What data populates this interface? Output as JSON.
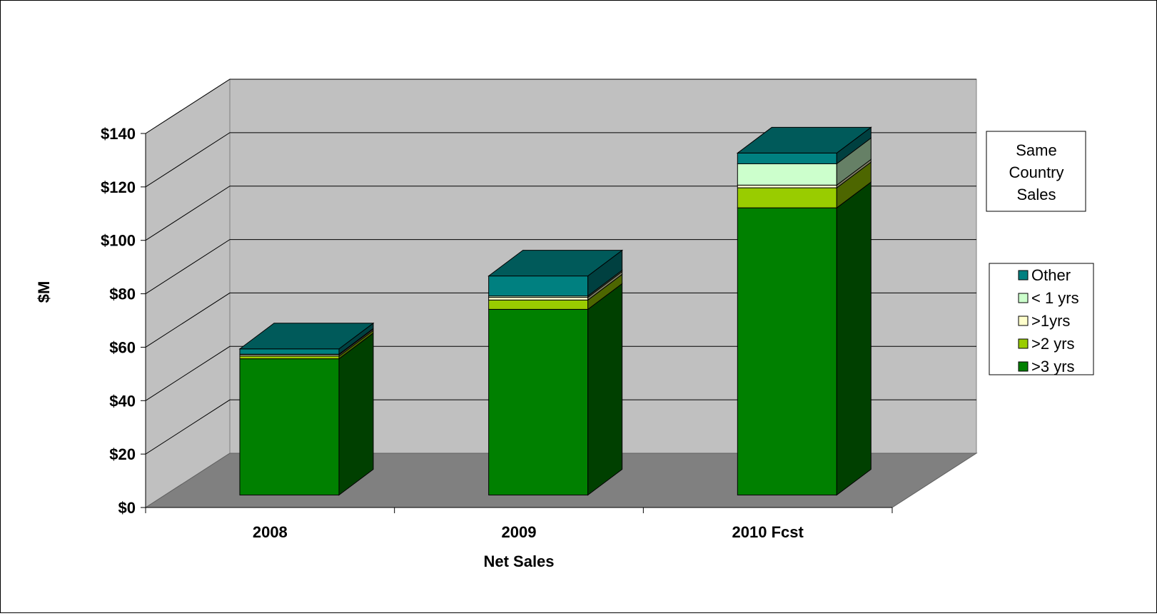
{
  "chart_data": {
    "type": "bar",
    "stacked": true,
    "three_d": true,
    "categories": [
      "2008",
      "2009",
      "2010 Fcst"
    ],
    "series": [
      {
        "name": ">3 yrs",
        "color": "#008000",
        "values": [
          51,
          69.5,
          107.5
        ]
      },
      {
        "name": ">2 yrs",
        "color": "#99CC00",
        "values": [
          1,
          3.5,
          7.5
        ]
      },
      {
        "name": ">1yrs",
        "color": "#FFFFCC",
        "values": [
          0.5,
          1,
          1
        ]
      },
      {
        "name": "< 1 yrs",
        "color": "#CCFFCC",
        "values": [
          0.2,
          0.5,
          8
        ]
      },
      {
        "name": "Other",
        "color": "#008080",
        "values": [
          2,
          7.5,
          4
        ]
      }
    ],
    "legend_order": [
      "Other",
      "< 1 yrs",
      ">1yrs",
      ">2 yrs",
      ">3 yrs"
    ],
    "y_ticks": [
      "$0",
      "$20",
      "$40",
      "$60",
      "$80",
      "$100",
      "$120",
      "$140"
    ],
    "ylim": [
      0,
      140
    ],
    "y_step": 20,
    "xlabel": "Net Sales",
    "ylabel": "$M",
    "annotation": "Same Country Sales",
    "annotation_lines": [
      "Same",
      "Country",
      "Sales"
    ],
    "wall_color": "#C0C0C0",
    "floor_color": "#808080",
    "grid": true,
    "legend_position": "right"
  }
}
